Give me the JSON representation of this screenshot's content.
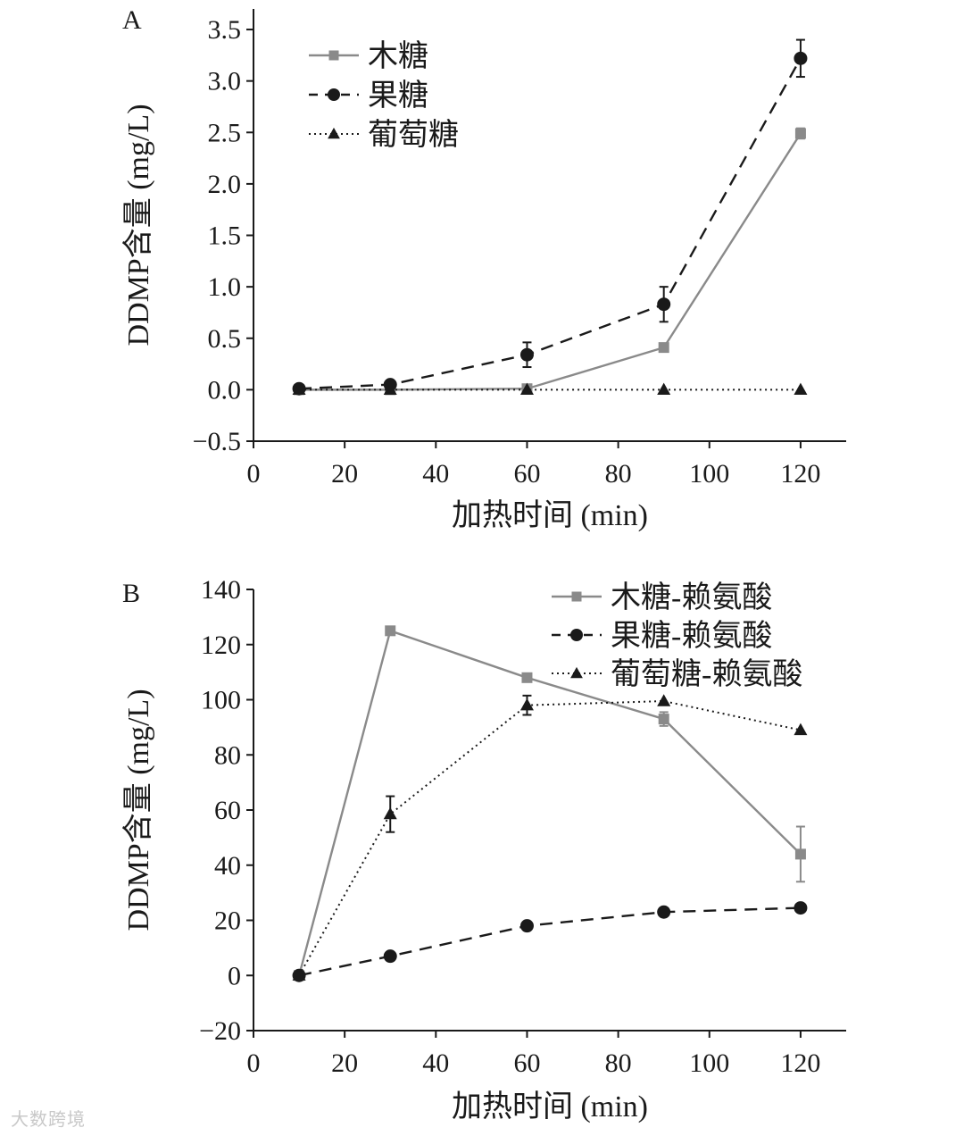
{
  "watermark": "大数跨境",
  "colors": {
    "gray": "#8a8a8a",
    "black": "#1a1a1a"
  },
  "chart_data": [
    {
      "type": "line",
      "panel_label": "A",
      "xlabel": "加热时间 (min)",
      "ylabel": "DDMP含量 (mg/L)",
      "xlim": [
        0,
        130
      ],
      "ylim": [
        -0.5,
        3.7
      ],
      "xticks": [
        0,
        20,
        40,
        60,
        80,
        100,
        120
      ],
      "yticks": [
        -0.5,
        0.0,
        0.5,
        1.0,
        1.5,
        2.0,
        2.5,
        3.0,
        3.5
      ],
      "ytick_labels": [
        "−0.5",
        "0.0",
        "0.5",
        "1.0",
        "1.5",
        "2.0",
        "2.5",
        "3.0",
        "3.5"
      ],
      "legend_position": "top-left",
      "series": [
        {
          "name": "木糖",
          "marker": "square",
          "line": "solid",
          "color": "#8a8a8a",
          "x": [
            10,
            30,
            60,
            90,
            120
          ],
          "y": [
            0.0,
            0.0,
            0.01,
            0.41,
            2.49
          ],
          "err": [
            0.01,
            0.01,
            0.01,
            0.04,
            0.05
          ]
        },
        {
          "name": "果糖",
          "marker": "circle",
          "line": "dashed",
          "color": "#1a1a1a",
          "x": [
            10,
            30,
            60,
            90,
            120
          ],
          "y": [
            0.01,
            0.05,
            0.34,
            0.83,
            3.22
          ],
          "err": [
            0.0,
            0.0,
            0.12,
            0.17,
            0.18
          ]
        },
        {
          "name": "葡萄糖",
          "marker": "triangle",
          "line": "dotted",
          "color": "#1a1a1a",
          "x": [
            10,
            30,
            60,
            90,
            120
          ],
          "y": [
            0.0,
            0.0,
            0.0,
            0.0,
            0.0
          ],
          "err": [
            0,
            0,
            0,
            0,
            0
          ]
        }
      ]
    },
    {
      "type": "line",
      "panel_label": "B",
      "xlabel": "加热时间 (min)",
      "ylabel": "DDMP含量 (mg/L)",
      "xlim": [
        0,
        130
      ],
      "ylim": [
        -20,
        140
      ],
      "xticks": [
        0,
        20,
        40,
        60,
        80,
        100,
        120
      ],
      "yticks": [
        -20,
        0,
        20,
        40,
        60,
        80,
        100,
        120,
        140
      ],
      "ytick_labels": [
        "−20",
        "0",
        "20",
        "40",
        "60",
        "80",
        "100",
        "120",
        "140"
      ],
      "legend_position": "top-right",
      "series": [
        {
          "name": "木糖-赖氨酸",
          "marker": "square",
          "line": "solid",
          "color": "#8a8a8a",
          "x": [
            10,
            30,
            60,
            90,
            120
          ],
          "y": [
            0,
            125,
            108,
            93,
            44
          ],
          "err": [
            0,
            0,
            1.5,
            2.5,
            10
          ]
        },
        {
          "name": "果糖-赖氨酸",
          "marker": "circle",
          "line": "dashed",
          "color": "#1a1a1a",
          "x": [
            10,
            30,
            60,
            90,
            120
          ],
          "y": [
            0,
            7,
            18,
            23,
            24.5
          ],
          "err": [
            0,
            0,
            0,
            0,
            0
          ]
        },
        {
          "name": "葡萄糖-赖氨酸",
          "marker": "triangle",
          "line": "dotted",
          "color": "#1a1a1a",
          "x": [
            10,
            30,
            60,
            90,
            120
          ],
          "y": [
            0,
            58.5,
            98,
            99.5,
            89
          ],
          "err": [
            0,
            6.5,
            3.5,
            0,
            0
          ]
        }
      ]
    }
  ]
}
